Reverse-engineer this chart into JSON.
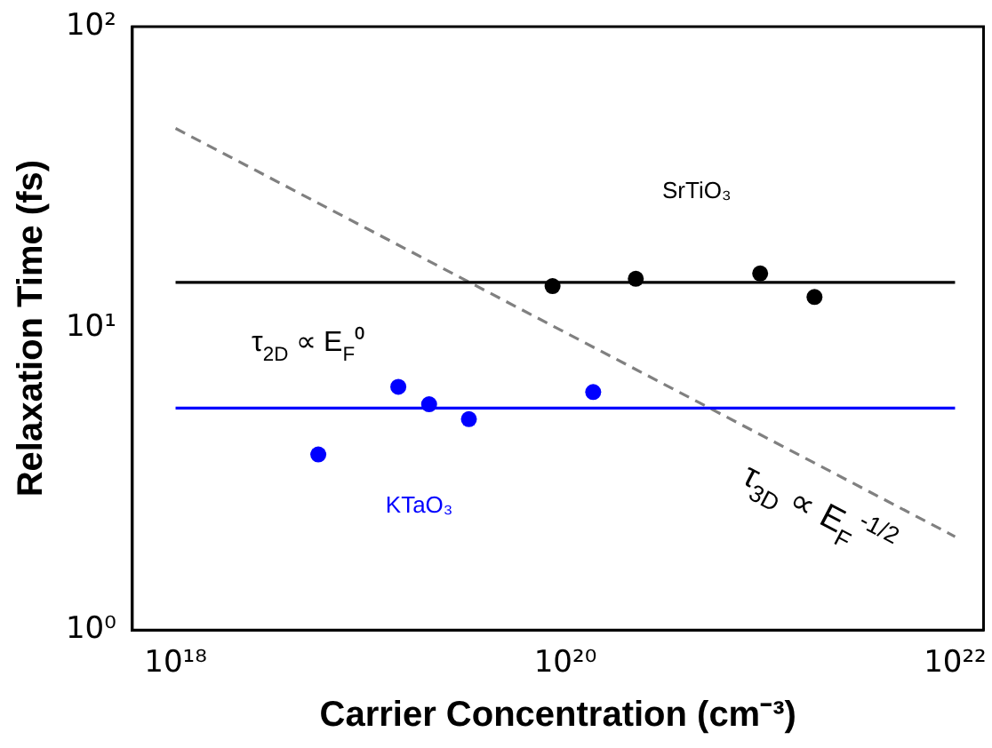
{
  "chart_data": {
    "type": "scatter",
    "xlabel": "Carrier Concentration (cm⁻³)",
    "ylabel": "Relaxation Time (fs)",
    "log": "xy",
    "xlim": [
      6e+17,
      1.4e+22
    ],
    "ylim": [
      1,
      100
    ],
    "xticks": [
      {
        "value": 1e+18,
        "label": "10¹⁸"
      },
      {
        "value": 1e+20,
        "label": "10²⁰"
      },
      {
        "value": 1e+22,
        "label": "10²²"
      }
    ],
    "yticks": [
      {
        "value": 1,
        "label": "10⁰"
      },
      {
        "value": 10,
        "label": "10¹"
      },
      {
        "value": 100,
        "label": "10²"
      }
    ],
    "series": [
      {
        "type": "line",
        "color": "#000000",
        "x": [
          1e+18,
          1e+22
        ],
        "values": [
          14.2,
          14.2
        ],
        "marker": "none",
        "line_style": "solid"
      },
      {
        "type": "scatter",
        "name": "SrTiO₃",
        "color": "#000000",
        "x": [
          8.6e+19,
          2.3e+20,
          1e+21,
          1.9e+21
        ],
        "values": [
          13.8,
          14.6,
          15.2,
          12.7
        ],
        "marker": "circle"
      },
      {
        "type": "line",
        "color": "#0000ff",
        "x": [
          1e+18,
          1e+22
        ],
        "values": [
          5.44,
          5.44
        ],
        "marker": "none",
        "line_style": "solid"
      },
      {
        "type": "scatter",
        "name": "KTaO₃",
        "color": "#0000ff",
        "x": [
          5.4e+18,
          1.39e+19,
          2e+19,
          3.2e+19,
          1.39e+20
        ],
        "values": [
          3.82,
          6.4,
          5.6,
          5.0,
          6.15
        ],
        "marker": "circle"
      },
      {
        "type": "line",
        "color": "#808080",
        "x": [
          1e+18,
          1e+22
        ],
        "values": [
          46,
          2.04
        ],
        "marker": "none",
        "line_style": "dashed"
      }
    ],
    "annotations": [
      "τ$_{2D}$ ∝ E$_{F}$⁰",
      "τ$_{3D}$ ∝ E$_{F}$$^{-1/2}$"
    ]
  }
}
